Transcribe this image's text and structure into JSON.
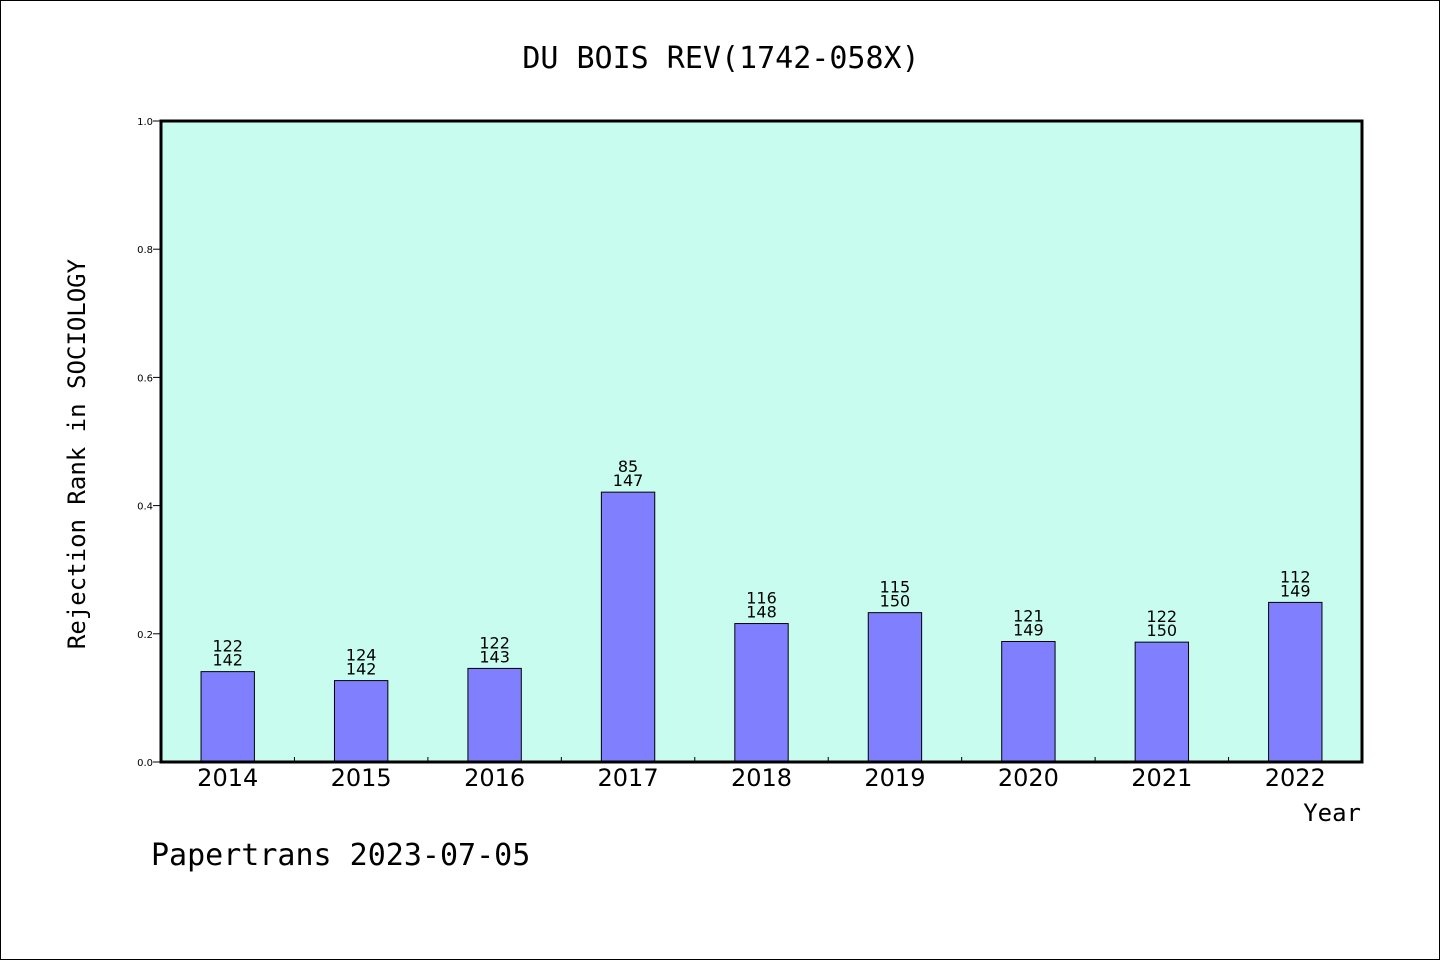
{
  "chart_data": {
    "type": "bar",
    "title": "DU BOIS REV(1742-058X)",
    "xlabel": "Year",
    "ylabel": "Rejection Rank in SOCIOLOGY",
    "ylim": [
      0,
      1.0
    ],
    "yticks": [
      "0.0",
      "0.2",
      "0.4",
      "0.6",
      "0.8",
      "1.0"
    ],
    "categories": [
      "2014",
      "2015",
      "2016",
      "2017",
      "2018",
      "2019",
      "2020",
      "2021",
      "2022"
    ],
    "values": [
      0.141,
      0.127,
      0.146,
      0.421,
      0.216,
      0.233,
      0.188,
      0.187,
      0.249
    ],
    "rank_labels": [
      "122",
      "124",
      "122",
      "85",
      "116",
      "115",
      "121",
      "122",
      "112"
    ],
    "total_labels": [
      "142",
      "142",
      "143",
      "147",
      "148",
      "150",
      "149",
      "150",
      "149"
    ],
    "grid": false,
    "colors": {
      "plot_bg": "#c8fcee",
      "bar": "#8080ff",
      "axis": "#000000"
    }
  },
  "footer": {
    "text": "Papertrans 2023-07-05"
  }
}
